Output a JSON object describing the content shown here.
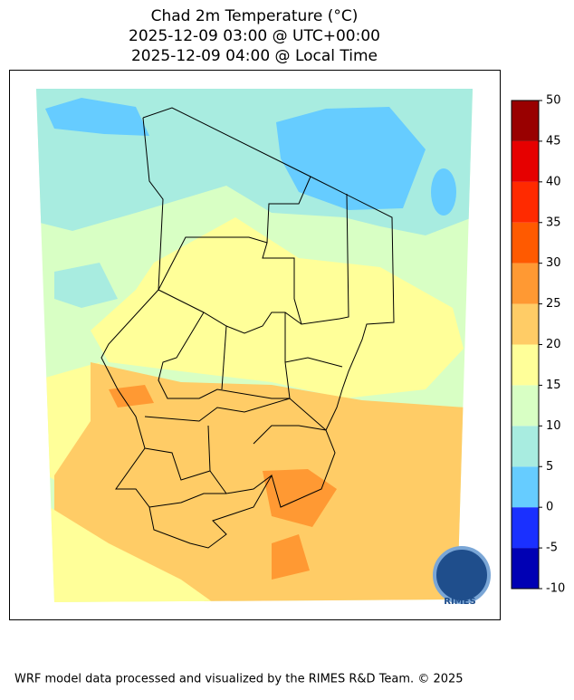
{
  "title": [
    "Chad 2m Temperature (°C)",
    "2025-12-09 03:00 @ UTC+00:00",
    "2025-12-09 04:00 @ Local Time"
  ],
  "colorbar": {
    "ticks": [
      -10,
      -5,
      0,
      5,
      10,
      15,
      20,
      25,
      30,
      35,
      40,
      45,
      50
    ],
    "colors": [
      "#0000b4",
      "#1a30ff",
      "#66ccff",
      "#a8ece0",
      "#d8ffc4",
      "#ffff99",
      "#ffcc66",
      "#ff9933",
      "#ff5a00",
      "#ff2a00",
      "#e60000",
      "#990000"
    ]
  },
  "logo": "RIMES",
  "footer": "WRF model data processed and visualized by the RIMES R&D Team. © 2025"
}
